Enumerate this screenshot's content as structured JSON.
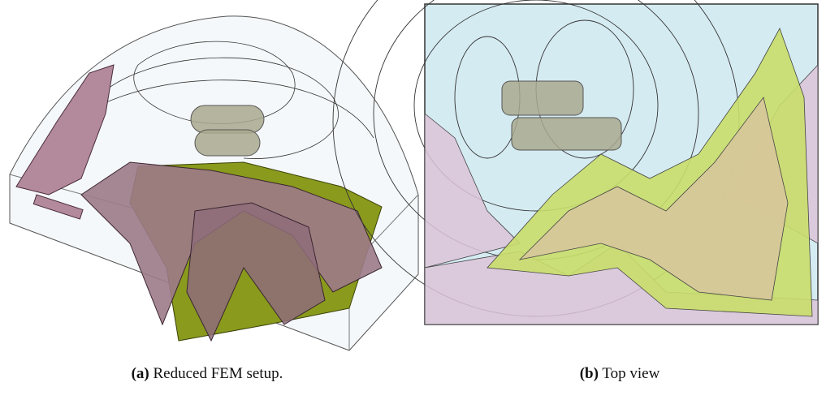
{
  "figure": {
    "panels": [
      {
        "label": "(a)",
        "caption": "Reduced FEM setup."
      },
      {
        "label": "(b)",
        "caption": "Top view"
      }
    ]
  }
}
